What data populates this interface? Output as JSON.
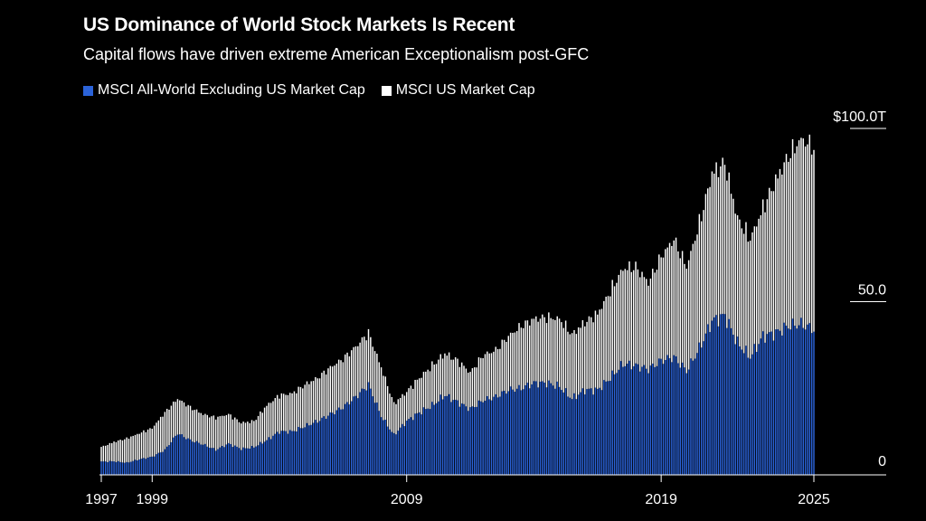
{
  "title": "US Dominance of World Stock Markets Is Recent",
  "subtitle": "Capital flows have driven extreme American Exceptionalism post-GFC",
  "legend": [
    {
      "label": "MSCI All-World Excluding US Market Cap",
      "color": "#2b63d9"
    },
    {
      "label": "MSCI US Market Cap",
      "color": "#ffffff"
    }
  ],
  "chart_data": {
    "type": "bar",
    "stacked": true,
    "x_range": [
      1997,
      2025.25
    ],
    "ylim": [
      0,
      100
    ],
    "y_ticks": [
      {
        "value": 0,
        "label": "0"
      },
      {
        "value": 50,
        "label": "50.0"
      },
      {
        "value": 100,
        "label": "$100.0T"
      }
    ],
    "x_ticks": [
      {
        "value": 1997,
        "label": "1997"
      },
      {
        "value": 1999,
        "label": "1999"
      },
      {
        "value": 2009,
        "label": "2009"
      },
      {
        "value": 2019,
        "label": "2019"
      },
      {
        "value": 2025,
        "label": "2025"
      }
    ],
    "grid": false,
    "legend_position": "top-left",
    "series": [
      {
        "name": "MSCI All-World Excluding US Market Cap",
        "color": "#2b63d9",
        "x": [
          1997.0,
          1997.5,
          1998.0,
          1998.5,
          1999.0,
          1999.5,
          2000.0,
          2000.5,
          2001.0,
          2001.5,
          2002.0,
          2002.5,
          2003.0,
          2003.5,
          2004.0,
          2004.5,
          2005.0,
          2005.5,
          2006.0,
          2006.5,
          2007.0,
          2007.5,
          2008.0,
          2008.5,
          2009.0,
          2009.5,
          2010.0,
          2010.5,
          2011.0,
          2011.5,
          2012.0,
          2012.5,
          2013.0,
          2013.5,
          2014.0,
          2014.5,
          2015.0,
          2015.5,
          2016.0,
          2016.5,
          2017.0,
          2017.5,
          2018.0,
          2018.5,
          2019.0,
          2019.5,
          2020.0,
          2020.5,
          2021.0,
          2021.5,
          2022.0,
          2022.5,
          2023.0,
          2023.5,
          2024.0,
          2024.5,
          2025.0
        ],
        "values": [
          3.8,
          3.9,
          3.5,
          4.5,
          5.2,
          7.2,
          12.0,
          10.0,
          8.8,
          7.2,
          9.0,
          7.5,
          8.0,
          10.0,
          12.5,
          12.5,
          14.0,
          15.5,
          17.5,
          19.5,
          22.5,
          26.0,
          17.0,
          11.5,
          15.5,
          18.0,
          20.0,
          23.0,
          21.0,
          19.0,
          21.5,
          22.5,
          24.5,
          25.0,
          26.5,
          26.5,
          25.5,
          22.0,
          24.5,
          24.5,
          28.0,
          32.0,
          31.5,
          30.5,
          33.0,
          34.0,
          30.0,
          36.5,
          44.5,
          46.0,
          38.0,
          34.0,
          40.0,
          41.0,
          43.0,
          43.5,
          42.0
        ]
      },
      {
        "name": "MSCI US Market Cap",
        "color": "#ffffff",
        "x": [
          1997.0,
          1997.5,
          1998.0,
          1998.5,
          1999.0,
          1999.5,
          2000.0,
          2000.5,
          2001.0,
          2001.5,
          2002.0,
          2002.5,
          2003.0,
          2003.5,
          2004.0,
          2004.5,
          2005.0,
          2005.5,
          2006.0,
          2006.5,
          2007.0,
          2007.5,
          2008.0,
          2008.5,
          2009.0,
          2009.5,
          2010.0,
          2010.5,
          2011.0,
          2011.5,
          2012.0,
          2012.5,
          2013.0,
          2013.5,
          2014.0,
          2014.5,
          2015.0,
          2015.5,
          2016.0,
          2016.5,
          2017.0,
          2017.5,
          2018.0,
          2018.5,
          2019.0,
          2019.5,
          2020.0,
          2020.5,
          2021.0,
          2021.5,
          2022.0,
          2022.5,
          2023.0,
          2023.5,
          2024.0,
          2024.5,
          2025.0
        ],
        "values": [
          4.2,
          5.6,
          7.0,
          7.5,
          8.3,
          10.8,
          10.0,
          9.5,
          8.7,
          9.3,
          8.5,
          7.5,
          7.5,
          10.0,
          10.5,
          11.0,
          12.0,
          12.5,
          13.5,
          14.0,
          14.5,
          15.0,
          14.0,
          9.0,
          8.5,
          10.0,
          11.5,
          12.0,
          12.0,
          10.5,
          13.0,
          13.5,
          15.5,
          18.0,
          18.5,
          19.0,
          19.5,
          18.5,
          19.5,
          22.0,
          25.0,
          27.5,
          28.5,
          25.0,
          30.0,
          34.0,
          30.0,
          36.0,
          42.5,
          44.0,
          36.0,
          34.0,
          37.0,
          44.0,
          49.0,
          53.5,
          52.5
        ]
      }
    ]
  }
}
